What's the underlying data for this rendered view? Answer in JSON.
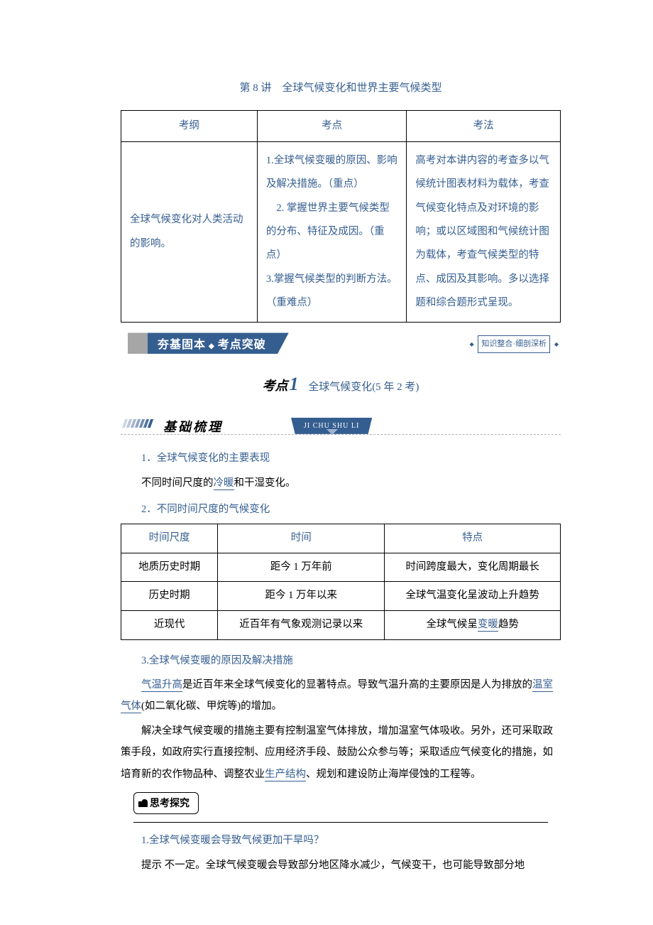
{
  "colors": {
    "heading_blue": "#365f91",
    "banner_blue": "#355e90",
    "banner_gray": "#a6a6a6",
    "background": "#ffffff",
    "text": "#000000",
    "border": "#000000",
    "dash": "#b0b0b0"
  },
  "typography": {
    "body_family": "SimSun, 宋体, serif",
    "heading_family": "SimHei, 黑体, sans-serif",
    "body_size_pt": 11,
    "line_height": 2.0
  },
  "lesson_title": "第 8 讲　全球气候变化和世界主要气候类型",
  "syllabus_table": {
    "headers": [
      "考纲",
      "考点",
      "考法"
    ],
    "col1": "全球气候变化对人类活动的影响。",
    "col2": "1.全球气候变暖的原因、影响及解决措施。（重点）\n　2. 掌握世界主要气候类型的分布、特征及成因。（重点）\n3.掌握气候类型的判断方法。（重难点）",
    "col3": "高考对本讲内容的考查多以气候统计图表材料为载体，考查气候变化特点及对环境的影响；或以区域图和气候统计图为载体，考查气候类型的特点、成因及其影响。多以选择题和综合题形式呈现。"
  },
  "banner1": {
    "left_text": "夯基固本",
    "left_text2": "考点突破",
    "right_text": "知识整合·细剖深析"
  },
  "kaodian": {
    "label": "考点",
    "num": "1",
    "text": "全球气候变化(5 年 2 考)"
  },
  "banner2": {
    "label": "基础梳理",
    "pinyin": "JI CHU SHU LI"
  },
  "section1": {
    "h": "1．全球气候变化的主要表现",
    "p_pre": "不同时间尺度的",
    "p_u1": "冷暖",
    "p_post": "和干湿变化。"
  },
  "section2_h": "2．不同时间尺度的气候变化",
  "table2": {
    "headers": [
      "时间尺度",
      "时间",
      "特点"
    ],
    "rows": [
      [
        "地质历史时期",
        "距今 1 万年前",
        "时间跨度最大，变化周期最长"
      ],
      [
        "历史时期",
        "距今 1 万年以来",
        "全球气温变化呈波动上升趋势"
      ],
      [
        "近现代",
        "近百年有气象观测记录以来",
        {
          "pre": "全球气候呈",
          "u": "变暖",
          "post": "趋势"
        }
      ]
    ],
    "col_widths_pct": [
      22,
      38,
      40
    ],
    "header_color": "#365f91"
  },
  "section3": {
    "h": "3.全球气候变暖的原因及解决措施",
    "p1": {
      "pre": "",
      "u1": "气温升高",
      "mid1": "是近百年来全球气候变化的显著特点。导致气温升高的主要原因是人为排放的",
      "u2": "温室气体",
      "mid2": "(如二氧化碳、甲烷等)的增加。"
    },
    "p2": {
      "pre": "解决全球气候变暖的措施主要有控制温室气体排放，增加温室气体吸收。另外，还可采取政策手段，如政府实行直接控制、应用经济手段、鼓励公众参与等；采取适应气候变化的措施，如培育新的农作物品种、调整农业",
      "u": "生产结构",
      "post": "、规划和建设防止海岸侵蚀的工程等。"
    }
  },
  "think": {
    "badge": "思考探究",
    "q1": "1.全球气候变暖会导致气候更加干旱吗？",
    "a1": "提示 不一定。全球气候变暖会导致部分地区降水减少，气候变干，也可能导致部分地"
  }
}
